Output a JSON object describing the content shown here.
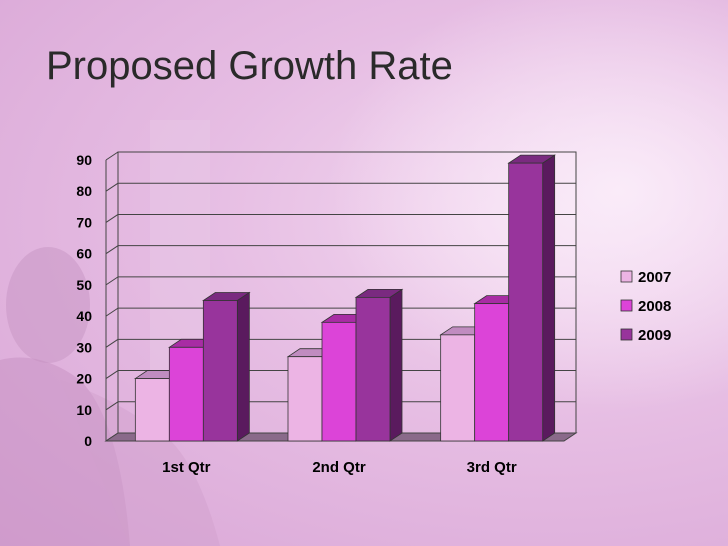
{
  "slide": {
    "title": "Proposed Growth Rate"
  },
  "colors": {
    "series": [
      "#ecb4e4",
      "#dc44d8",
      "#98349c"
    ],
    "series_tops": [
      "#c08cc0",
      "#a82ca4",
      "#7a2a80"
    ],
    "series_sides": [
      "#a878a8",
      "#8c2488",
      "#5a1a5e"
    ],
    "floor": "#8a6a8a"
  },
  "chart_data": {
    "type": "bar",
    "categories": [
      "1st Qtr",
      "2nd Qtr",
      "3rd Qtr"
    ],
    "series": [
      {
        "name": "2007",
        "values": [
          20,
          27,
          34
        ]
      },
      {
        "name": "2008",
        "values": [
          30,
          38,
          44
        ]
      },
      {
        "name": "2009",
        "values": [
          45,
          46,
          89
        ]
      }
    ],
    "title": "",
    "xlabel": "",
    "ylabel": "",
    "ylim": [
      0,
      90
    ],
    "yticks": [
      0,
      10,
      20,
      30,
      40,
      50,
      60,
      70,
      80,
      90
    ],
    "grid": true,
    "legend": "right",
    "style": "3d-clustered-column"
  }
}
